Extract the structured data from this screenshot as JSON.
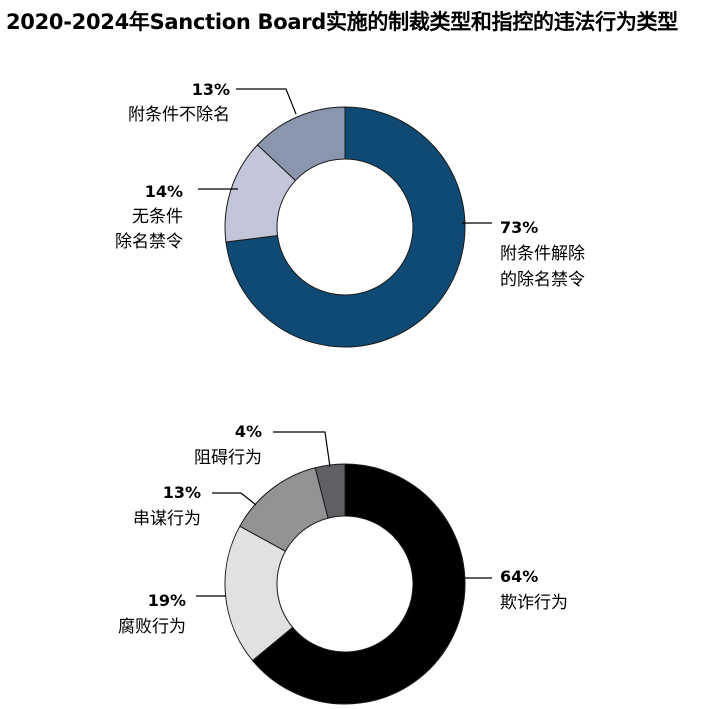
{
  "title": "2020-2024年Sanction Board实施的制裁类型和指控的违法行为类型",
  "chart_data": [
    {
      "type": "pie",
      "donut": true,
      "title": "",
      "slices": [
        {
          "label": [
            "附条件解除",
            "的除名禁令"
          ],
          "pct_label": "73%",
          "value": 73,
          "color": "#0e4a74"
        },
        {
          "label": [
            "无条件",
            "除名禁令"
          ],
          "pct_label": "14%",
          "value": 14,
          "color": "#c2c6d8"
        },
        {
          "label": [
            "附条件不除名"
          ],
          "pct_label": "13%",
          "value": 13,
          "color": "#8a96ad"
        }
      ]
    },
    {
      "type": "pie",
      "donut": true,
      "title": "",
      "slices": [
        {
          "label": [
            "欺诈行为"
          ],
          "pct_label": "64%",
          "value": 64,
          "color": "#000000"
        },
        {
          "label": [
            "腐败行为"
          ],
          "pct_label": "19%",
          "value": 19,
          "color": "#e0e1e3"
        },
        {
          "label": [
            "串谋行为"
          ],
          "pct_label": "13%",
          "value": 13,
          "color": "#929394"
        },
        {
          "label": [
            "阻碍行为"
          ],
          "pct_label": "4%",
          "value": 4,
          "color": "#5f6064"
        }
      ]
    }
  ]
}
